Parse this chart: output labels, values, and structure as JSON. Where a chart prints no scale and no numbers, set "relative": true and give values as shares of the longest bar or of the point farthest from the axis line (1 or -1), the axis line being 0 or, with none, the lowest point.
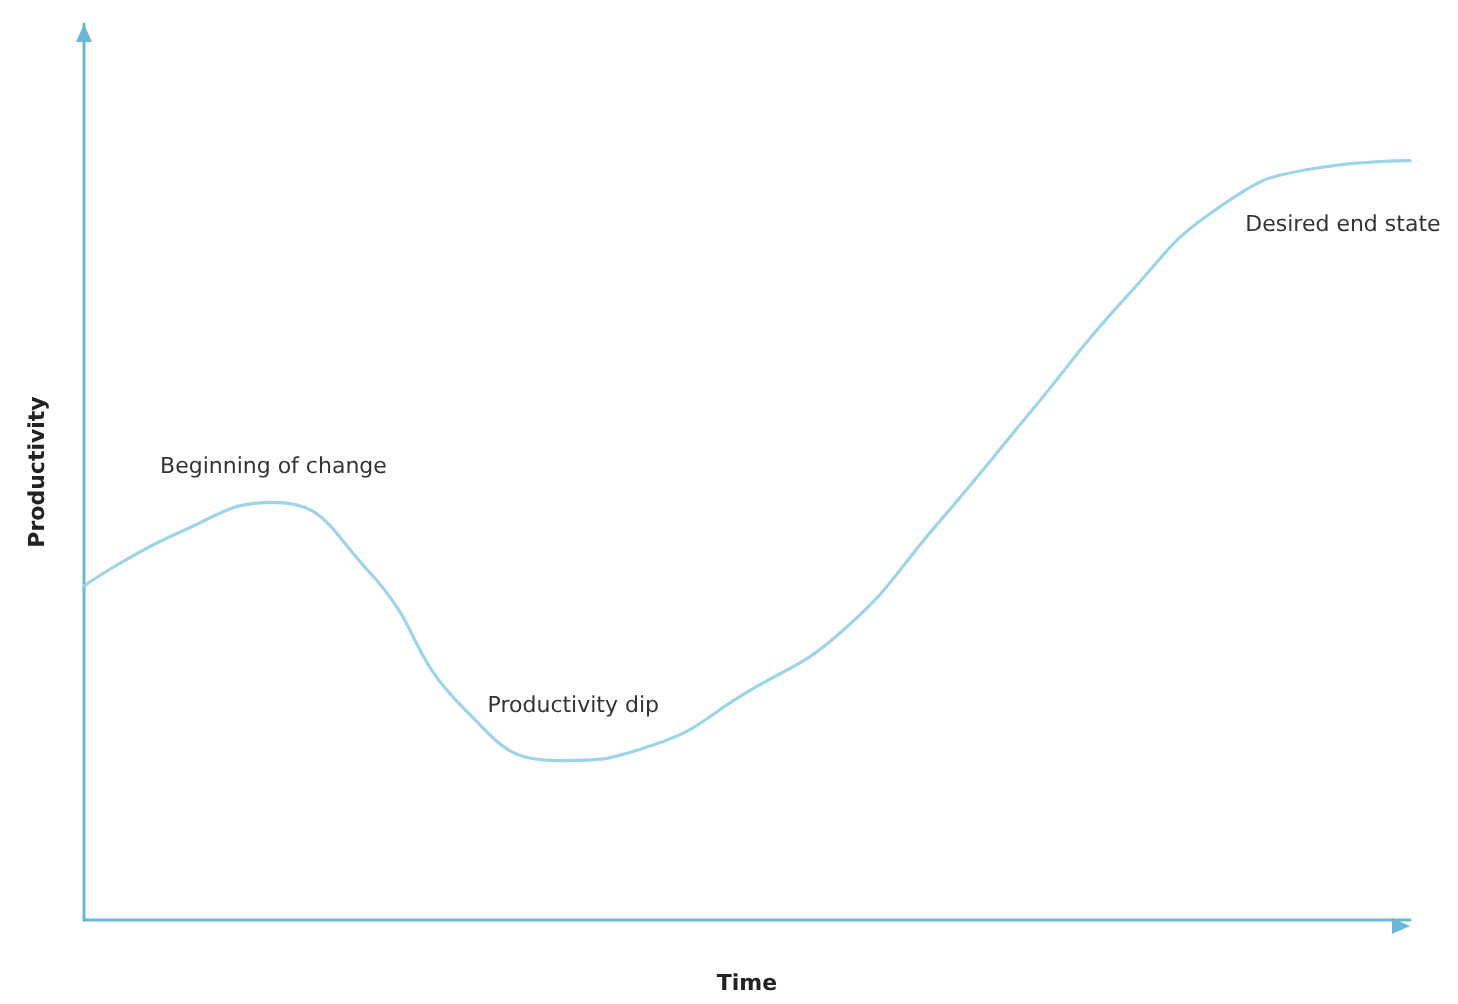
{
  "chart_data": {
    "type": "line",
    "relative": true,
    "xlabel": "Time",
    "ylabel": "Productivity",
    "categories": [
      null,
      null,
      null,
      null,
      null,
      null,
      null,
      null,
      null,
      null,
      null,
      null,
      null,
      null,
      null
    ],
    "series": [
      {
        "color": "#9dd4ea",
        "values": [
          0.44,
          0.51,
          0.55,
          0.46,
          0.28,
          0.21,
          0.23,
          0.3,
          0.38,
          0.52,
          0.67,
          0.82,
          0.94,
          0.99,
          1
        ]
      }
    ],
    "annotations": [
      "Beginning of change",
      "Productivity dip",
      "Desired end state"
    ],
    "grid": false,
    "marker": "none",
    "line_style": "solid"
  }
}
